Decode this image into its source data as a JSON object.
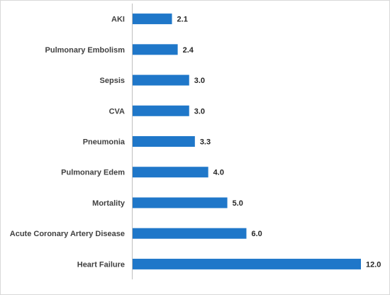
{
  "chart_data": {
    "type": "bar",
    "orientation": "horizontal",
    "title": "",
    "xlabel": "",
    "ylabel": "",
    "categories": [
      "AKI",
      "Pulmonary Embolism",
      "Sepsis",
      "CVA",
      "Pneumonia",
      "Pulmonary Edem",
      "Mortality",
      "Acute Coronary Artery Disease",
      "Heart Failure"
    ],
    "values": [
      2.1,
      2.4,
      3.0,
      3.0,
      3.3,
      4.0,
      5.0,
      6.0,
      12.0
    ],
    "value_labels": [
      "2.1",
      "2.4",
      "3.0",
      "3.0",
      "3.3",
      "4.0",
      "5.0",
      "6.0",
      "12.0"
    ],
    "xlim": [
      0,
      12.0
    ],
    "grid": false,
    "legend": "none",
    "bar_color": "#1f77c9"
  }
}
